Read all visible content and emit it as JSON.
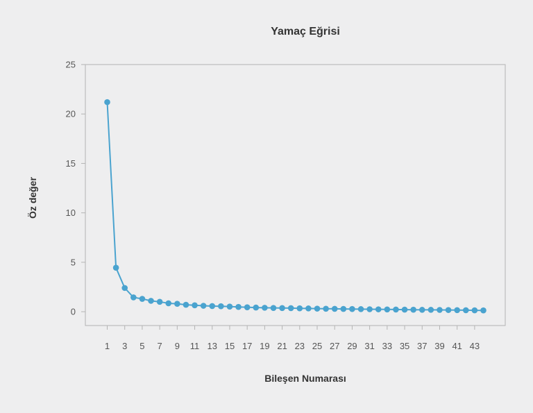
{
  "chart_data": {
    "type": "line",
    "title": "Yamaç Eğrisi",
    "xlabel": "Bileşen Numarası",
    "ylabel": "Öz değer",
    "xlim": [
      -1.5,
      46.5
    ],
    "ylim": [
      -1.4,
      25
    ],
    "yticks": [
      0,
      5,
      10,
      15,
      20,
      25
    ],
    "xticks": [
      1,
      3,
      5,
      7,
      9,
      11,
      13,
      15,
      17,
      19,
      21,
      23,
      25,
      27,
      29,
      31,
      33,
      35,
      37,
      39,
      41,
      43
    ],
    "grid": false,
    "legend": "none",
    "color": "#4aa3cf",
    "series": [
      {
        "x": [
          1,
          2,
          3,
          4,
          5,
          6,
          7,
          8,
          9,
          10,
          11,
          12,
          13,
          14,
          15,
          16,
          17,
          18,
          19,
          20,
          21,
          22,
          23,
          24,
          25,
          26,
          27,
          28,
          29,
          30,
          31,
          32,
          33,
          34,
          35,
          36,
          37,
          38,
          39,
          40,
          41,
          42,
          43,
          44
        ],
        "values": [
          21.2,
          4.45,
          2.4,
          1.45,
          1.3,
          1.1,
          1.0,
          0.85,
          0.8,
          0.7,
          0.65,
          0.6,
          0.57,
          0.55,
          0.52,
          0.48,
          0.45,
          0.42,
          0.4,
          0.38,
          0.37,
          0.36,
          0.34,
          0.33,
          0.31,
          0.3,
          0.29,
          0.28,
          0.27,
          0.26,
          0.25,
          0.24,
          0.23,
          0.22,
          0.21,
          0.2,
          0.19,
          0.19,
          0.18,
          0.17,
          0.16,
          0.15,
          0.14,
          0.13
        ]
      }
    ]
  }
}
